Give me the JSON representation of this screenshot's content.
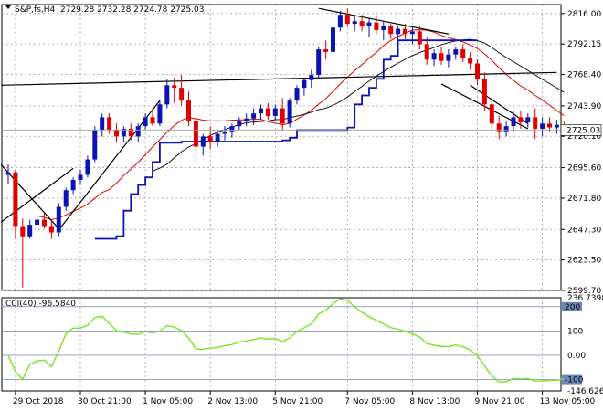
{
  "header": {
    "symbol": "S&P,fs,H4",
    "ohlc": "2729.28 2732.28 2724.78 2725.03"
  },
  "indicator_label": "CCI(40) -96.5840",
  "colors": {
    "bull": "#0a14b4",
    "bear": "#e00000",
    "cci": "#7be51e",
    "trend": "#000000",
    "grid": "#a0a0a0"
  },
  "chart_data": [
    {
      "type": "candlestick",
      "title": "",
      "y_ticks": [
        "2816.00",
        "2792.15",
        "2768.40",
        "2743.90",
        "2720.10",
        "2695.60",
        "2671.80",
        "2647.30",
        "2623.50",
        "2599.70"
      ],
      "y_tick_values": [
        2816.0,
        2792.15,
        2768.4,
        2743.9,
        2720.1,
        2695.6,
        2671.8,
        2647.3,
        2623.5,
        2599.7
      ],
      "ylim": [
        2599.7,
        2823
      ],
      "x_ticks": [
        "29 Oct 2018",
        "30 Oct 21:00",
        "1 Nov 05:00",
        "2 Nov 13:00",
        "5 Nov 21:00",
        "7 Nov 05:00",
        "8 Nov 13:00",
        "9 Nov 21:00",
        "13 Nov 05:00"
      ],
      "x_tick_index": [
        1,
        10,
        19,
        28,
        37,
        47,
        56,
        65,
        74
      ],
      "current_price": "2725.03",
      "current_value": 2725.03,
      "candles": [
        [
          2690,
          2698,
          2683,
          2692
        ],
        [
          2692,
          2694,
          2640,
          2650
        ],
        [
          2650,
          2656,
          2602,
          2642
        ],
        [
          2642,
          2655,
          2640,
          2651
        ],
        [
          2651,
          2656,
          2645,
          2655
        ],
        [
          2655,
          2660,
          2648,
          2650
        ],
        [
          2650,
          2655,
          2640,
          2645
        ],
        [
          2645,
          2668,
          2642,
          2665
        ],
        [
          2665,
          2680,
          2662,
          2678
        ],
        [
          2678,
          2688,
          2675,
          2686
        ],
        [
          2686,
          2694,
          2682,
          2690
        ],
        [
          2690,
          2705,
          2688,
          2702
        ],
        [
          2702,
          2728,
          2700,
          2725
        ],
        [
          2725,
          2738,
          2720,
          2735
        ],
        [
          2735,
          2738,
          2722,
          2725
        ],
        [
          2725,
          2730,
          2715,
          2720
        ],
        [
          2720,
          2728,
          2716,
          2726
        ],
        [
          2726,
          2730,
          2717,
          2720
        ],
        [
          2720,
          2730,
          2716,
          2728
        ],
        [
          2728,
          2738,
          2725,
          2735
        ],
        [
          2735,
          2742,
          2728,
          2730
        ],
        [
          2730,
          2748,
          2728,
          2745
        ],
        [
          2745,
          2765,
          2742,
          2760
        ],
        [
          2760,
          2766,
          2746,
          2758
        ],
        [
          2758,
          2768,
          2744,
          2748
        ],
        [
          2748,
          2755,
          2728,
          2732
        ],
        [
          2732,
          2738,
          2698,
          2712
        ],
        [
          2712,
          2722,
          2705,
          2720
        ],
        [
          2720,
          2728,
          2710,
          2716
        ],
        [
          2716,
          2725,
          2712,
          2722
        ],
        [
          2722,
          2728,
          2717,
          2724
        ],
        [
          2724,
          2730,
          2719,
          2728
        ],
        [
          2728,
          2735,
          2725,
          2732
        ],
        [
          2732,
          2738,
          2728,
          2734
        ],
        [
          2734,
          2742,
          2729,
          2738
        ],
        [
          2738,
          2745,
          2733,
          2742
        ],
        [
          2742,
          2746,
          2733,
          2736
        ],
        [
          2736,
          2745,
          2733,
          2742
        ],
        [
          2742,
          2750,
          2725,
          2730
        ],
        [
          2730,
          2750,
          2727,
          2748
        ],
        [
          2748,
          2760,
          2745,
          2758
        ],
        [
          2758,
          2766,
          2752,
          2764
        ],
        [
          2764,
          2772,
          2758,
          2768
        ],
        [
          2768,
          2790,
          2765,
          2788
        ],
        [
          2788,
          2795,
          2780,
          2786
        ],
        [
          2786,
          2808,
          2783,
          2805
        ],
        [
          2805,
          2818,
          2802,
          2815
        ],
        [
          2815,
          2820,
          2806,
          2808
        ],
        [
          2808,
          2814,
          2802,
          2810
        ],
        [
          2810,
          2815,
          2802,
          2806
        ],
        [
          2806,
          2812,
          2798,
          2809
        ],
        [
          2809,
          2814,
          2800,
          2803
        ],
        [
          2803,
          2810,
          2795,
          2806
        ],
        [
          2806,
          2808,
          2796,
          2800
        ],
        [
          2800,
          2806,
          2795,
          2804
        ],
        [
          2804,
          2808,
          2796,
          2800
        ],
        [
          2800,
          2805,
          2792,
          2802
        ],
        [
          2802,
          2806,
          2788,
          2792
        ],
        [
          2792,
          2798,
          2776,
          2780
        ],
        [
          2780,
          2788,
          2775,
          2785
        ],
        [
          2785,
          2790,
          2776,
          2779
        ],
        [
          2779,
          2788,
          2774,
          2784
        ],
        [
          2784,
          2790,
          2780,
          2788
        ],
        [
          2788,
          2792,
          2778,
          2781
        ],
        [
          2781,
          2786,
          2772,
          2777
        ],
        [
          2777,
          2780,
          2760,
          2765
        ],
        [
          2765,
          2770,
          2740,
          2745
        ],
        [
          2745,
          2750,
          2725,
          2730
        ],
        [
          2730,
          2736,
          2718,
          2724
        ],
        [
          2724,
          2732,
          2720,
          2728
        ],
        [
          2728,
          2740,
          2724,
          2735
        ],
        [
          2735,
          2740,
          2726,
          2731
        ],
        [
          2731,
          2738,
          2727,
          2735
        ],
        [
          2735,
          2742,
          2718,
          2726
        ],
        [
          2726,
          2735,
          2720,
          2730
        ],
        [
          2730,
          2735,
          2724,
          2727
        ],
        [
          2727,
          2733,
          2722,
          2729
        ],
        [
          2729.28,
          2732.28,
          2724.78,
          2725.03
        ]
      ]
    },
    {
      "type": "line",
      "title": "",
      "y_ticks": [
        "236.7398",
        "200",
        "100",
        "0.00",
        "-100",
        "-146.6265"
      ],
      "y_tick_values": [
        236.7398,
        200,
        100,
        0,
        -100,
        -146.6265
      ],
      "ylim": [
        -146.6265,
        236.7398
      ],
      "current_value": -96.584
    }
  ]
}
